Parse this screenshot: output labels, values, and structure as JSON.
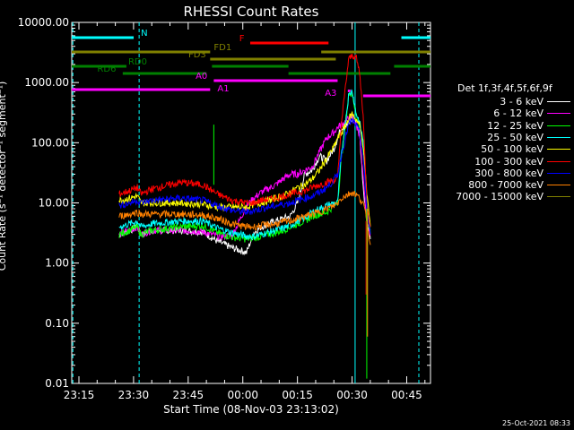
{
  "chart_data": {
    "type": "line",
    "title": "RHESSI Count Rates",
    "xlabel": "Start Time (08-Nov-03 23:13:02)",
    "ylabel": "Count Rate (s⁻¹ detector⁻¹ segment⁻¹)",
    "yscale": "log",
    "ylim": [
      0.01,
      10000
    ],
    "xlim_minutes_from_23_13_02": [
      0,
      98.5
    ],
    "x_tick_labels": [
      "23:15",
      "23:30",
      "23:45",
      "00:00",
      "00:15",
      "00:30",
      "00:45"
    ],
    "y_tick_labels": [
      "10000.00",
      "1000.00",
      "100.00",
      "10.00",
      "1.00",
      "0.10",
      "0.01"
    ],
    "legend_title": "Det 1f,3f,4f,5f,6f,9f",
    "legend_placement": "right",
    "series": [
      {
        "name": "3 - 6 keV",
        "color": "#ffffff",
        "x": [
          13,
          16,
          18,
          19,
          22,
          30,
          36,
          40,
          44,
          48,
          50,
          52,
          56,
          58,
          60,
          62,
          64,
          66,
          68,
          70,
          72,
          73,
          74,
          76,
          77,
          78,
          79,
          80,
          81,
          82
        ],
        "y": [
          3,
          3.5,
          4,
          3,
          3.5,
          3.5,
          3.3,
          2.3,
          1.8,
          1.5,
          3.2,
          4,
          5,
          5.5,
          6,
          10,
          30,
          35,
          60,
          50,
          80,
          120,
          180,
          200,
          250,
          210,
          150,
          20,
          5,
          2.5
        ]
      },
      {
        "name": "6 - 12 keV",
        "color": "#ff00ff",
        "x": [
          13,
          16,
          18,
          19,
          22,
          30,
          36,
          40,
          44,
          48,
          50,
          52,
          56,
          58,
          60,
          62,
          64,
          66,
          68,
          70,
          72,
          73,
          74,
          76,
          77,
          78,
          79,
          80,
          81,
          82
        ],
        "y": [
          3,
          3.5,
          4,
          3,
          3.5,
          3.5,
          3.3,
          2.8,
          2.8,
          9,
          12,
          15,
          20,
          25,
          30,
          30,
          35,
          40,
          70,
          120,
          150,
          180,
          200,
          250,
          280,
          200,
          140,
          25,
          5,
          3
        ]
      },
      {
        "name": "12 - 25 keV",
        "color": "#00ff00",
        "x": [
          13,
          16,
          18,
          19,
          22,
          30,
          36,
          40,
          44,
          48,
          50,
          52,
          56,
          58,
          60,
          62,
          64,
          66,
          68,
          70,
          72,
          73,
          74,
          76,
          77,
          78,
          79,
          80,
          81,
          82
        ],
        "y": [
          3,
          3.5,
          4,
          3,
          3.5,
          4,
          4.2,
          3.2,
          2.7,
          2.5,
          2.6,
          2.8,
          3.2,
          3.5,
          4,
          4.5,
          5,
          6,
          6.5,
          7,
          9,
          10,
          50,
          600,
          700,
          300,
          200,
          100,
          8,
          3
        ]
      },
      {
        "name": "25 - 50 keV",
        "color": "#00ffff",
        "x": [
          13,
          16,
          18,
          19,
          22,
          30,
          36,
          40,
          44,
          48,
          50,
          52,
          56,
          58,
          60,
          62,
          64,
          66,
          68,
          70,
          72,
          73,
          74,
          76,
          77,
          78,
          79,
          80,
          81,
          82
        ],
        "y": [
          4,
          4.5,
          5,
          4,
          4.5,
          5,
          5,
          3.8,
          3.2,
          2.8,
          2.8,
          3,
          3.5,
          3.8,
          4.2,
          5,
          5.5,
          7,
          8,
          9,
          10,
          10,
          60,
          600,
          750,
          320,
          220,
          110,
          9,
          3.5
        ]
      },
      {
        "name": "50 - 100 keV",
        "color": "#ffff00",
        "x": [
          13,
          16,
          18,
          19,
          22,
          30,
          36,
          40,
          44,
          48,
          50,
          52,
          56,
          58,
          60,
          62,
          64,
          66,
          68,
          70,
          72,
          73,
          74,
          76,
          77,
          78,
          79,
          80,
          81,
          82
        ],
        "y": [
          11,
          12,
          13,
          10,
          10,
          10,
          9.5,
          8.5,
          8.5,
          8.5,
          9.5,
          10,
          12,
          13,
          15,
          18,
          20,
          25,
          35,
          55,
          85,
          120,
          140,
          250,
          300,
          250,
          200,
          90,
          15,
          4
        ]
      },
      {
        "name": "100 - 300 keV",
        "color": "#ff0000",
        "x": [
          13,
          16,
          18,
          19,
          22,
          30,
          36,
          40,
          44,
          48,
          50,
          52,
          56,
          58,
          60,
          62,
          64,
          66,
          68,
          70,
          72,
          73,
          74,
          76,
          77,
          78,
          79,
          80,
          81,
          82
        ],
        "y": [
          14,
          16,
          18,
          14,
          17,
          22,
          20,
          14,
          11,
          10,
          10,
          11,
          12,
          13,
          14,
          15,
          16,
          18,
          20,
          22,
          24,
          25,
          200,
          2400,
          2800,
          2700,
          1500,
          300,
          10,
          4
        ]
      },
      {
        "name": "300 - 800 keV",
        "color": "#0000ff",
        "x": [
          13,
          16,
          18,
          19,
          22,
          30,
          36,
          40,
          44,
          48,
          50,
          52,
          56,
          58,
          60,
          62,
          64,
          66,
          68,
          70,
          72,
          73,
          74,
          76,
          77,
          78,
          79,
          80,
          81,
          82
        ],
        "y": [
          9,
          10,
          11,
          10,
          11,
          12,
          11,
          9,
          7.5,
          7,
          7.5,
          8,
          9,
          9.5,
          10,
          11,
          12,
          13,
          15,
          18,
          24,
          30,
          60,
          200,
          230,
          200,
          150,
          60,
          8,
          3
        ]
      },
      {
        "name": "800 - 7000 keV",
        "color": "#ff8000",
        "x": [
          13,
          16,
          18,
          19,
          22,
          30,
          36,
          40,
          44,
          48,
          50,
          52,
          56,
          58,
          60,
          62,
          64,
          66,
          68,
          70,
          72,
          73,
          74,
          76,
          77,
          78,
          79,
          80,
          81,
          82
        ],
        "y": [
          6,
          6.5,
          7,
          6.5,
          6.5,
          6.5,
          6.3,
          5.5,
          4.5,
          4,
          4,
          4.2,
          4.5,
          4.8,
          5,
          5.5,
          6,
          6.5,
          7,
          8,
          9,
          10,
          12,
          14,
          15,
          14,
          12,
          10,
          5,
          2
        ]
      },
      {
        "name": "7000 - 15000 keV",
        "color": "#808000",
        "x": [],
        "y": []
      }
    ],
    "annotations": [
      "N",
      "F",
      "FD1",
      "FD3",
      "RD0",
      "RD6",
      "A0",
      "A1",
      "A3"
    ]
  },
  "timestamp": "25-Oct-2021 08:33"
}
